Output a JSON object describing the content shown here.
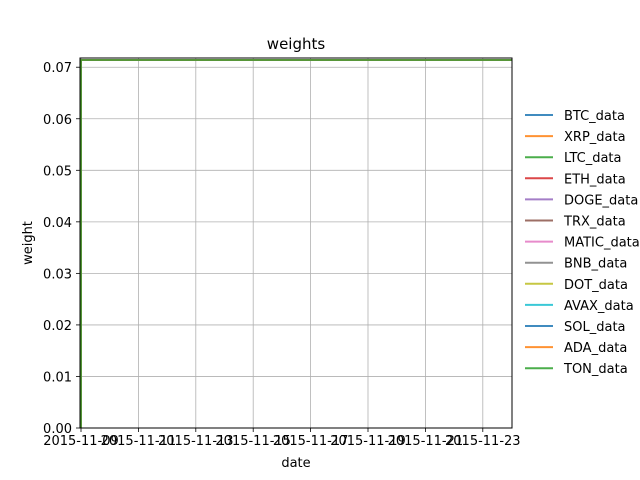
{
  "chart_data": {
    "type": "line",
    "title": "weights",
    "xlabel": "date",
    "ylabel": "weight",
    "x_tick_labels": [
      "2015-11-09",
      "2015-11-11",
      "2015-11-13",
      "2015-11-15",
      "2015-11-17",
      "2015-11-19",
      "2015-11-21",
      "2015-11-23"
    ],
    "y_tick_labels": [
      "0.00",
      "0.01",
      "0.02",
      "0.03",
      "0.04",
      "0.05",
      "0.06",
      "0.07"
    ],
    "xlim": [
      "2015-11-09",
      "2015-11-24"
    ],
    "ylim": [
      0.0,
      0.0714
    ],
    "grid": true,
    "legend_position": "right",
    "x": [
      "2015-11-09",
      "2015-11-24"
    ],
    "series": [
      {
        "name": "BTC_data",
        "color": "#1f77b4",
        "values": [
          0.0714,
          0.0714
        ]
      },
      {
        "name": "XRP_data",
        "color": "#ff7f0e",
        "values": [
          0.0714,
          0.0714
        ]
      },
      {
        "name": "LTC_data",
        "color": "#2ca02c",
        "values": [
          0.0714,
          0.0714
        ]
      },
      {
        "name": "ETH_data",
        "color": "#d62728",
        "values": [
          0.0714,
          0.0714
        ]
      },
      {
        "name": "DOGE_data",
        "color": "#9467bd",
        "values": [
          0.0714,
          0.0714
        ]
      },
      {
        "name": "TRX_data",
        "color": "#8c564b",
        "values": [
          0.0714,
          0.0714
        ]
      },
      {
        "name": "MATIC_data",
        "color": "#e377c2",
        "values": [
          0.0714,
          0.0714
        ]
      },
      {
        "name": "BNB_data",
        "color": "#7f7f7f",
        "values": [
          0.0714,
          0.0714
        ]
      },
      {
        "name": "DOT_data",
        "color": "#bcbd22",
        "values": [
          0.0714,
          0.0714
        ]
      },
      {
        "name": "AVAX_data",
        "color": "#17becf",
        "values": [
          0.0714,
          0.0714
        ]
      },
      {
        "name": "SOL_data",
        "color": "#1f77b4",
        "values": [
          0.0714,
          0.0714
        ]
      },
      {
        "name": "ADA_data",
        "color": "#ff7f0e",
        "values": [
          0.0714,
          0.0714
        ]
      },
      {
        "name": "TON_data",
        "color": "#2ca02c",
        "values": [
          0.0714,
          0.0714
        ]
      }
    ]
  }
}
